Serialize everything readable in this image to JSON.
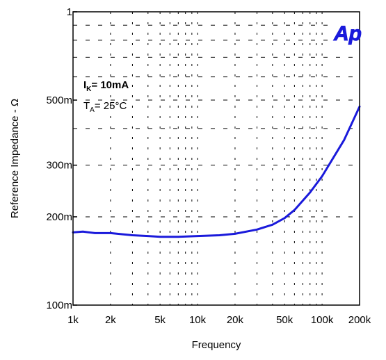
{
  "chart_data": {
    "type": "line",
    "xlabel": "Frequency",
    "ylabel": "Reference Impedance - Ω",
    "x_scale": "log",
    "y_scale": "log",
    "xlim": [
      1000,
      200000
    ],
    "ylim": [
      0.1,
      1
    ],
    "grid": true,
    "x_ticks": [
      {
        "value": 1000,
        "label": "1k"
      },
      {
        "value": 2000,
        "label": "2k"
      },
      {
        "value": 5000,
        "label": "5k"
      },
      {
        "value": 10000,
        "label": "10k"
      },
      {
        "value": 20000,
        "label": "20k"
      },
      {
        "value": 50000,
        "label": "50k"
      },
      {
        "value": 100000,
        "label": "100k"
      },
      {
        "value": 200000,
        "label": "200k"
      }
    ],
    "y_ticks": [
      {
        "value": 0.1,
        "label": "100m"
      },
      {
        "value": 0.2,
        "label": "200m"
      },
      {
        "value": 0.3,
        "label": "300m"
      },
      {
        "value": 0.5,
        "label": "500m"
      },
      {
        "value": 1,
        "label": "1"
      }
    ],
    "series": [
      {
        "color": "#1a1adb",
        "x": [
          1000,
          1200,
          1500,
          2000,
          3000,
          4000,
          5000,
          7000,
          10000,
          15000,
          20000,
          30000,
          40000,
          50000,
          60000,
          80000,
          100000,
          150000,
          200000
        ],
        "y": [
          0.177,
          0.178,
          0.176,
          0.176,
          0.173,
          0.172,
          0.171,
          0.171,
          0.172,
          0.173,
          0.175,
          0.181,
          0.188,
          0.198,
          0.211,
          0.242,
          0.275,
          0.365,
          0.475
        ]
      }
    ],
    "annotations": {
      "current_main": "I",
      "current_sub": "K",
      "current_value": "= 10mA",
      "temp_main": "T",
      "temp_sub": "A",
      "temp_value": "= 25°C"
    },
    "logo": "Ap",
    "logo_color": "#1a1adb"
  }
}
